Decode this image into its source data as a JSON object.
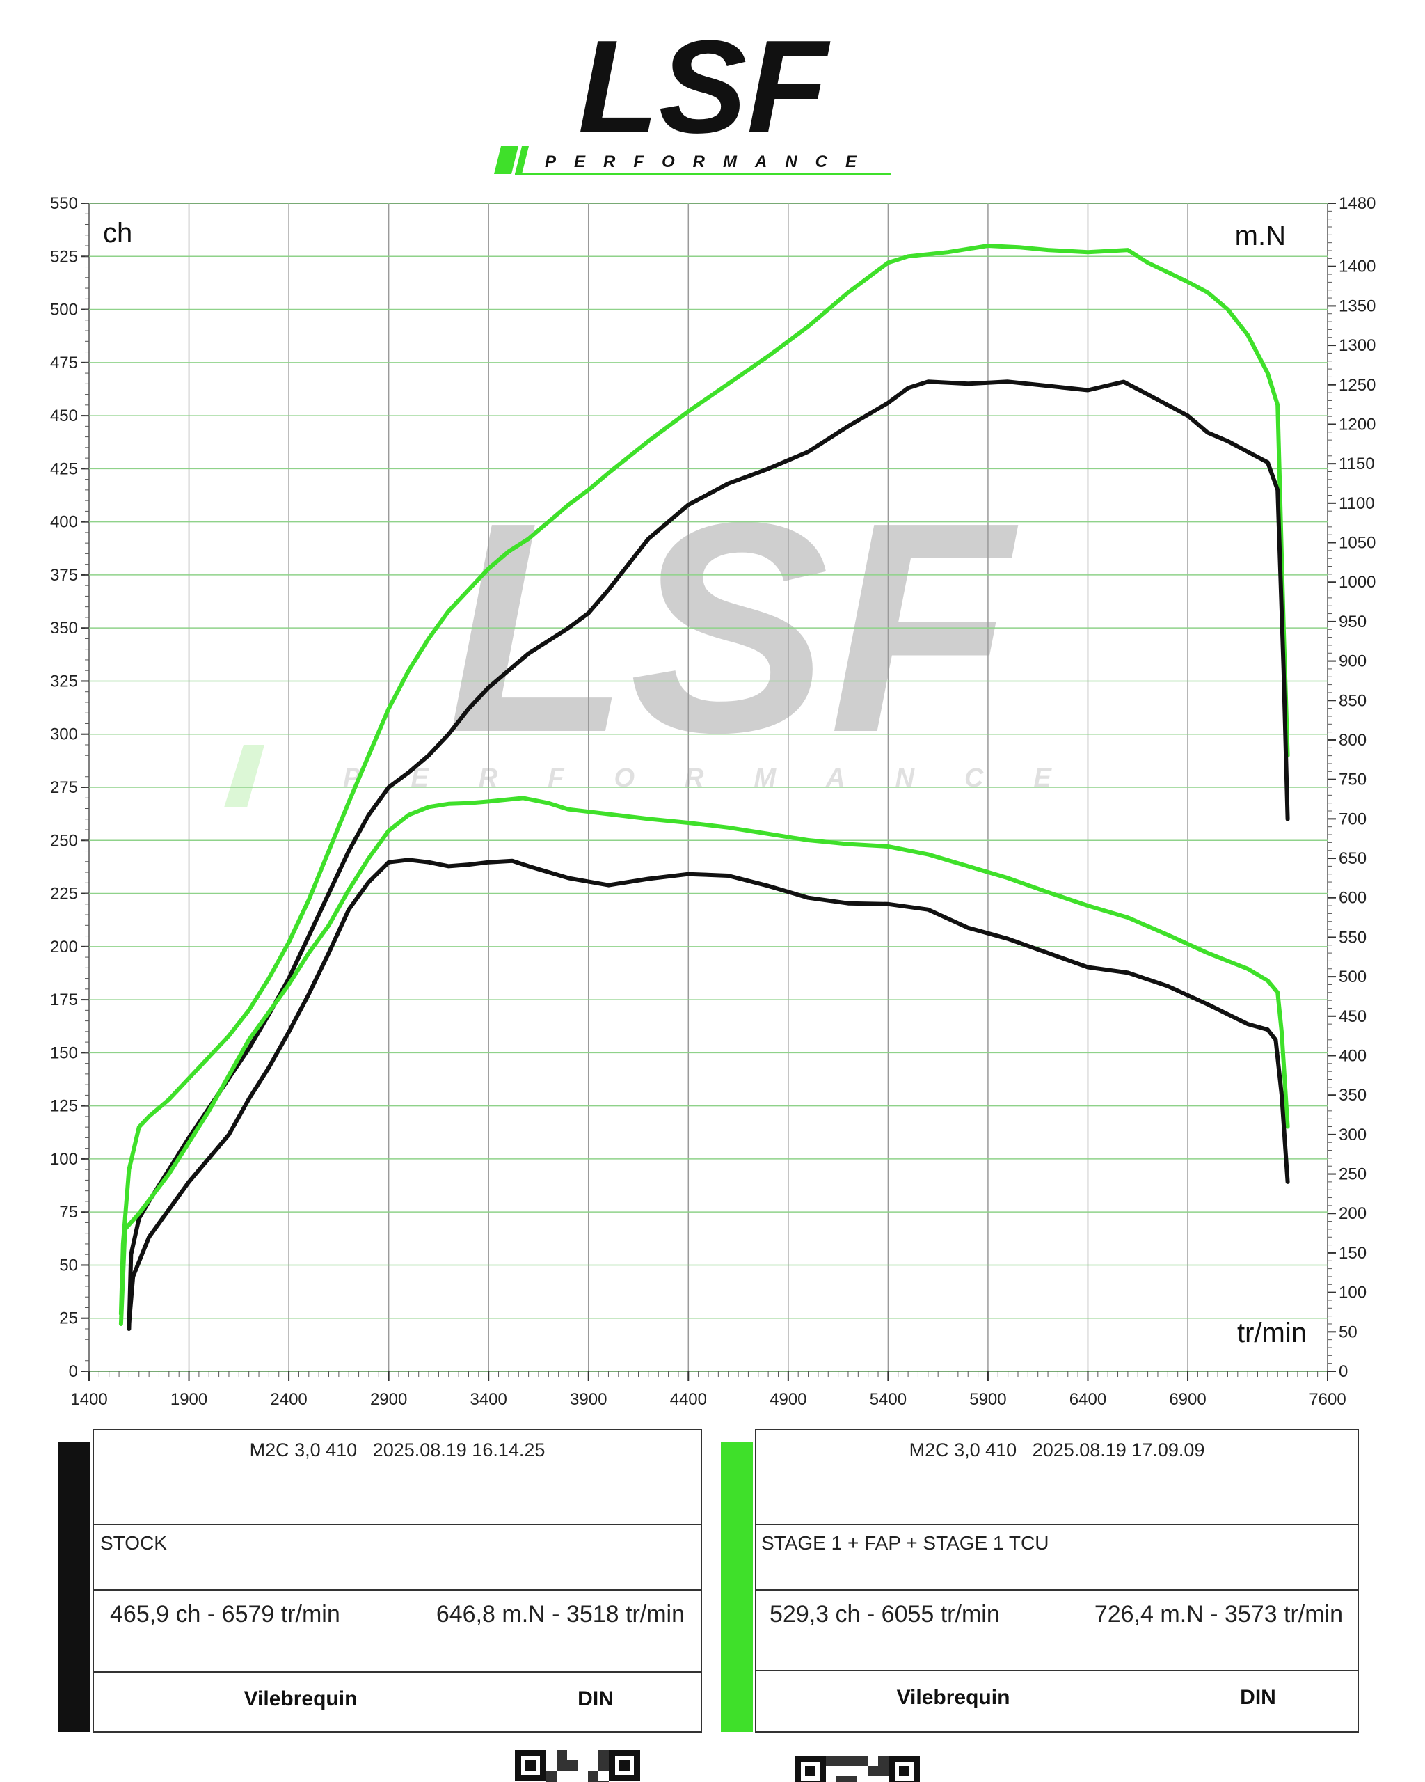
{
  "logo": {
    "brand": "LSF",
    "tagline": "PERFORMANCE",
    "brand_color": "#111111",
    "accent_color": "#3fe02a"
  },
  "watermark": {
    "brand": "LSF",
    "tagline": "PERFORMANCE"
  },
  "chart_data": {
    "type": "line",
    "xlabel": "tr/min",
    "ylabel_left": "ch",
    "ylabel_right": "m.N",
    "xlim": [
      1400,
      7600
    ],
    "ylim_left": [
      0,
      550
    ],
    "ylim_right": [
      0,
      1480
    ],
    "x_ticks": [
      1400,
      1900,
      2400,
      2900,
      3400,
      3900,
      4400,
      4900,
      5400,
      5900,
      6400,
      6900,
      7600
    ],
    "y_ticks_left": [
      0,
      25,
      50,
      75,
      100,
      125,
      150,
      175,
      200,
      225,
      250,
      275,
      300,
      325,
      350,
      375,
      400,
      425,
      450,
      475,
      500,
      525,
      550
    ],
    "y_ticks_right": [
      0,
      50,
      100,
      150,
      200,
      250,
      300,
      350,
      400,
      450,
      500,
      550,
      600,
      650,
      700,
      750,
      800,
      850,
      900,
      950,
      1000,
      1050,
      1100,
      1150,
      1200,
      1250,
      1300,
      1350,
      1400,
      1480
    ],
    "grid": true,
    "series": [
      {
        "run": "stage1",
        "quantity": "power",
        "axis": "left",
        "color": "#3fe02a",
        "points": [
          [
            1560,
            27
          ],
          [
            1570,
            60
          ],
          [
            1600,
            95
          ],
          [
            1650,
            115
          ],
          [
            1700,
            120
          ],
          [
            1800,
            128
          ],
          [
            1900,
            138
          ],
          [
            2000,
            148
          ],
          [
            2100,
            158
          ],
          [
            2200,
            170
          ],
          [
            2300,
            185
          ],
          [
            2400,
            202
          ],
          [
            2500,
            222
          ],
          [
            2600,
            245
          ],
          [
            2700,
            268
          ],
          [
            2800,
            290
          ],
          [
            2900,
            312
          ],
          [
            3000,
            330
          ],
          [
            3100,
            345
          ],
          [
            3200,
            358
          ],
          [
            3300,
            368
          ],
          [
            3400,
            378
          ],
          [
            3500,
            386
          ],
          [
            3600,
            392
          ],
          [
            3700,
            400
          ],
          [
            3800,
            408
          ],
          [
            3900,
            415
          ],
          [
            4000,
            423
          ],
          [
            4200,
            438
          ],
          [
            4400,
            452
          ],
          [
            4600,
            465
          ],
          [
            4800,
            478
          ],
          [
            5000,
            492
          ],
          [
            5200,
            508
          ],
          [
            5400,
            522
          ],
          [
            5500,
            525
          ],
          [
            5700,
            527
          ],
          [
            5900,
            530
          ],
          [
            6055,
            529.3
          ],
          [
            6200,
            528
          ],
          [
            6400,
            527
          ],
          [
            6600,
            528
          ],
          [
            6700,
            522
          ],
          [
            6900,
            513
          ],
          [
            7000,
            508
          ],
          [
            7100,
            500
          ],
          [
            7200,
            488
          ],
          [
            7300,
            470
          ],
          [
            7350,
            455
          ],
          [
            7360,
            420
          ],
          [
            7380,
            350
          ],
          [
            7400,
            290
          ]
        ]
      },
      {
        "run": "stock",
        "quantity": "power",
        "axis": "left",
        "color": "#111111",
        "points": [
          [
            1600,
            20
          ],
          [
            1610,
            55
          ],
          [
            1650,
            72
          ],
          [
            1700,
            80
          ],
          [
            1800,
            95
          ],
          [
            1900,
            110
          ],
          [
            2000,
            124
          ],
          [
            2100,
            138
          ],
          [
            2200,
            152
          ],
          [
            2300,
            168
          ],
          [
            2400,
            185
          ],
          [
            2500,
            205
          ],
          [
            2600,
            225
          ],
          [
            2700,
            245
          ],
          [
            2800,
            262
          ],
          [
            2900,
            275
          ],
          [
            3000,
            282
          ],
          [
            3100,
            290
          ],
          [
            3200,
            300
          ],
          [
            3300,
            312
          ],
          [
            3400,
            322
          ],
          [
            3500,
            330
          ],
          [
            3600,
            338
          ],
          [
            3700,
            344
          ],
          [
            3800,
            350
          ],
          [
            3900,
            357
          ],
          [
            4000,
            368
          ],
          [
            4100,
            380
          ],
          [
            4200,
            392
          ],
          [
            4400,
            408
          ],
          [
            4600,
            418
          ],
          [
            4800,
            425
          ],
          [
            5000,
            433
          ],
          [
            5200,
            445
          ],
          [
            5400,
            456
          ],
          [
            5500,
            463
          ],
          [
            5600,
            466
          ],
          [
            5800,
            465
          ],
          [
            6000,
            466
          ],
          [
            6200,
            464
          ],
          [
            6400,
            462
          ],
          [
            6579,
            465.9
          ],
          [
            6700,
            460
          ],
          [
            6900,
            450
          ],
          [
            7000,
            442
          ],
          [
            7100,
            438
          ],
          [
            7200,
            433
          ],
          [
            7300,
            428
          ],
          [
            7350,
            415
          ],
          [
            7380,
            330
          ],
          [
            7400,
            260
          ]
        ]
      },
      {
        "run": "stage1",
        "quantity": "torque",
        "axis": "right",
        "color": "#3fe02a",
        "points": [
          [
            1560,
            60
          ],
          [
            1580,
            180
          ],
          [
            1650,
            200
          ],
          [
            1800,
            250
          ],
          [
            2000,
            330
          ],
          [
            2200,
            420
          ],
          [
            2400,
            490
          ],
          [
            2500,
            530
          ],
          [
            2600,
            565
          ],
          [
            2700,
            610
          ],
          [
            2800,
            650
          ],
          [
            2900,
            685
          ],
          [
            3000,
            705
          ],
          [
            3100,
            715
          ],
          [
            3200,
            719
          ],
          [
            3300,
            720
          ],
          [
            3400,
            722
          ],
          [
            3573,
            726.4
          ],
          [
            3700,
            720
          ],
          [
            3800,
            712
          ],
          [
            4000,
            706
          ],
          [
            4200,
            700
          ],
          [
            4400,
            695
          ],
          [
            4600,
            689
          ],
          [
            4800,
            681
          ],
          [
            5000,
            673
          ],
          [
            5200,
            668
          ],
          [
            5400,
            665
          ],
          [
            5600,
            655
          ],
          [
            5800,
            640
          ],
          [
            6000,
            625
          ],
          [
            6200,
            607
          ],
          [
            6400,
            590
          ],
          [
            6600,
            575
          ],
          [
            6800,
            553
          ],
          [
            7000,
            530
          ],
          [
            7200,
            510
          ],
          [
            7300,
            495
          ],
          [
            7350,
            480
          ],
          [
            7370,
            430
          ],
          [
            7400,
            310
          ]
        ]
      },
      {
        "run": "stock",
        "quantity": "torque",
        "axis": "right",
        "color": "#111111",
        "points": [
          [
            1600,
            60
          ],
          [
            1620,
            120
          ],
          [
            1700,
            170
          ],
          [
            1800,
            205
          ],
          [
            1900,
            240
          ],
          [
            2000,
            270
          ],
          [
            2100,
            300
          ],
          [
            2200,
            345
          ],
          [
            2300,
            385
          ],
          [
            2400,
            430
          ],
          [
            2500,
            478
          ],
          [
            2600,
            530
          ],
          [
            2700,
            585
          ],
          [
            2800,
            620
          ],
          [
            2900,
            645
          ],
          [
            3000,
            648
          ],
          [
            3100,
            645
          ],
          [
            3200,
            640
          ],
          [
            3300,
            642
          ],
          [
            3400,
            645
          ],
          [
            3518,
            646.8
          ],
          [
            3600,
            640
          ],
          [
            3800,
            625
          ],
          [
            4000,
            616
          ],
          [
            4200,
            624
          ],
          [
            4400,
            630
          ],
          [
            4600,
            628
          ],
          [
            4800,
            615
          ],
          [
            5000,
            600
          ],
          [
            5200,
            593
          ],
          [
            5400,
            592
          ],
          [
            5600,
            585
          ],
          [
            5800,
            562
          ],
          [
            6000,
            548
          ],
          [
            6200,
            530
          ],
          [
            6400,
            512
          ],
          [
            6600,
            505
          ],
          [
            6800,
            488
          ],
          [
            7000,
            465
          ],
          [
            7200,
            440
          ],
          [
            7300,
            433
          ],
          [
            7340,
            420
          ],
          [
            7370,
            350
          ],
          [
            7400,
            240
          ]
        ]
      }
    ]
  },
  "results": [
    {
      "swatch_color": "#111111",
      "header": "M2C 3,0 410   2025.08.19 16.14.25",
      "name": "STOCK",
      "power": "465,9 ch - 6579 tr/min",
      "torque": "646,8 m.N - 3518 tr/min",
      "crank": "Vilebrequin",
      "norm": "DIN"
    },
    {
      "swatch_color": "#3fe02a",
      "header": "M2C 3,0 410   2025.08.19 17.09.09",
      "name": "STAGE 1 + FAP + STAGE 1 TCU",
      "power": "529,3 ch - 6055 tr/min",
      "torque": "726,4 m.N - 3573 tr/min",
      "crank": "Vilebrequin",
      "norm": "DIN"
    }
  ]
}
